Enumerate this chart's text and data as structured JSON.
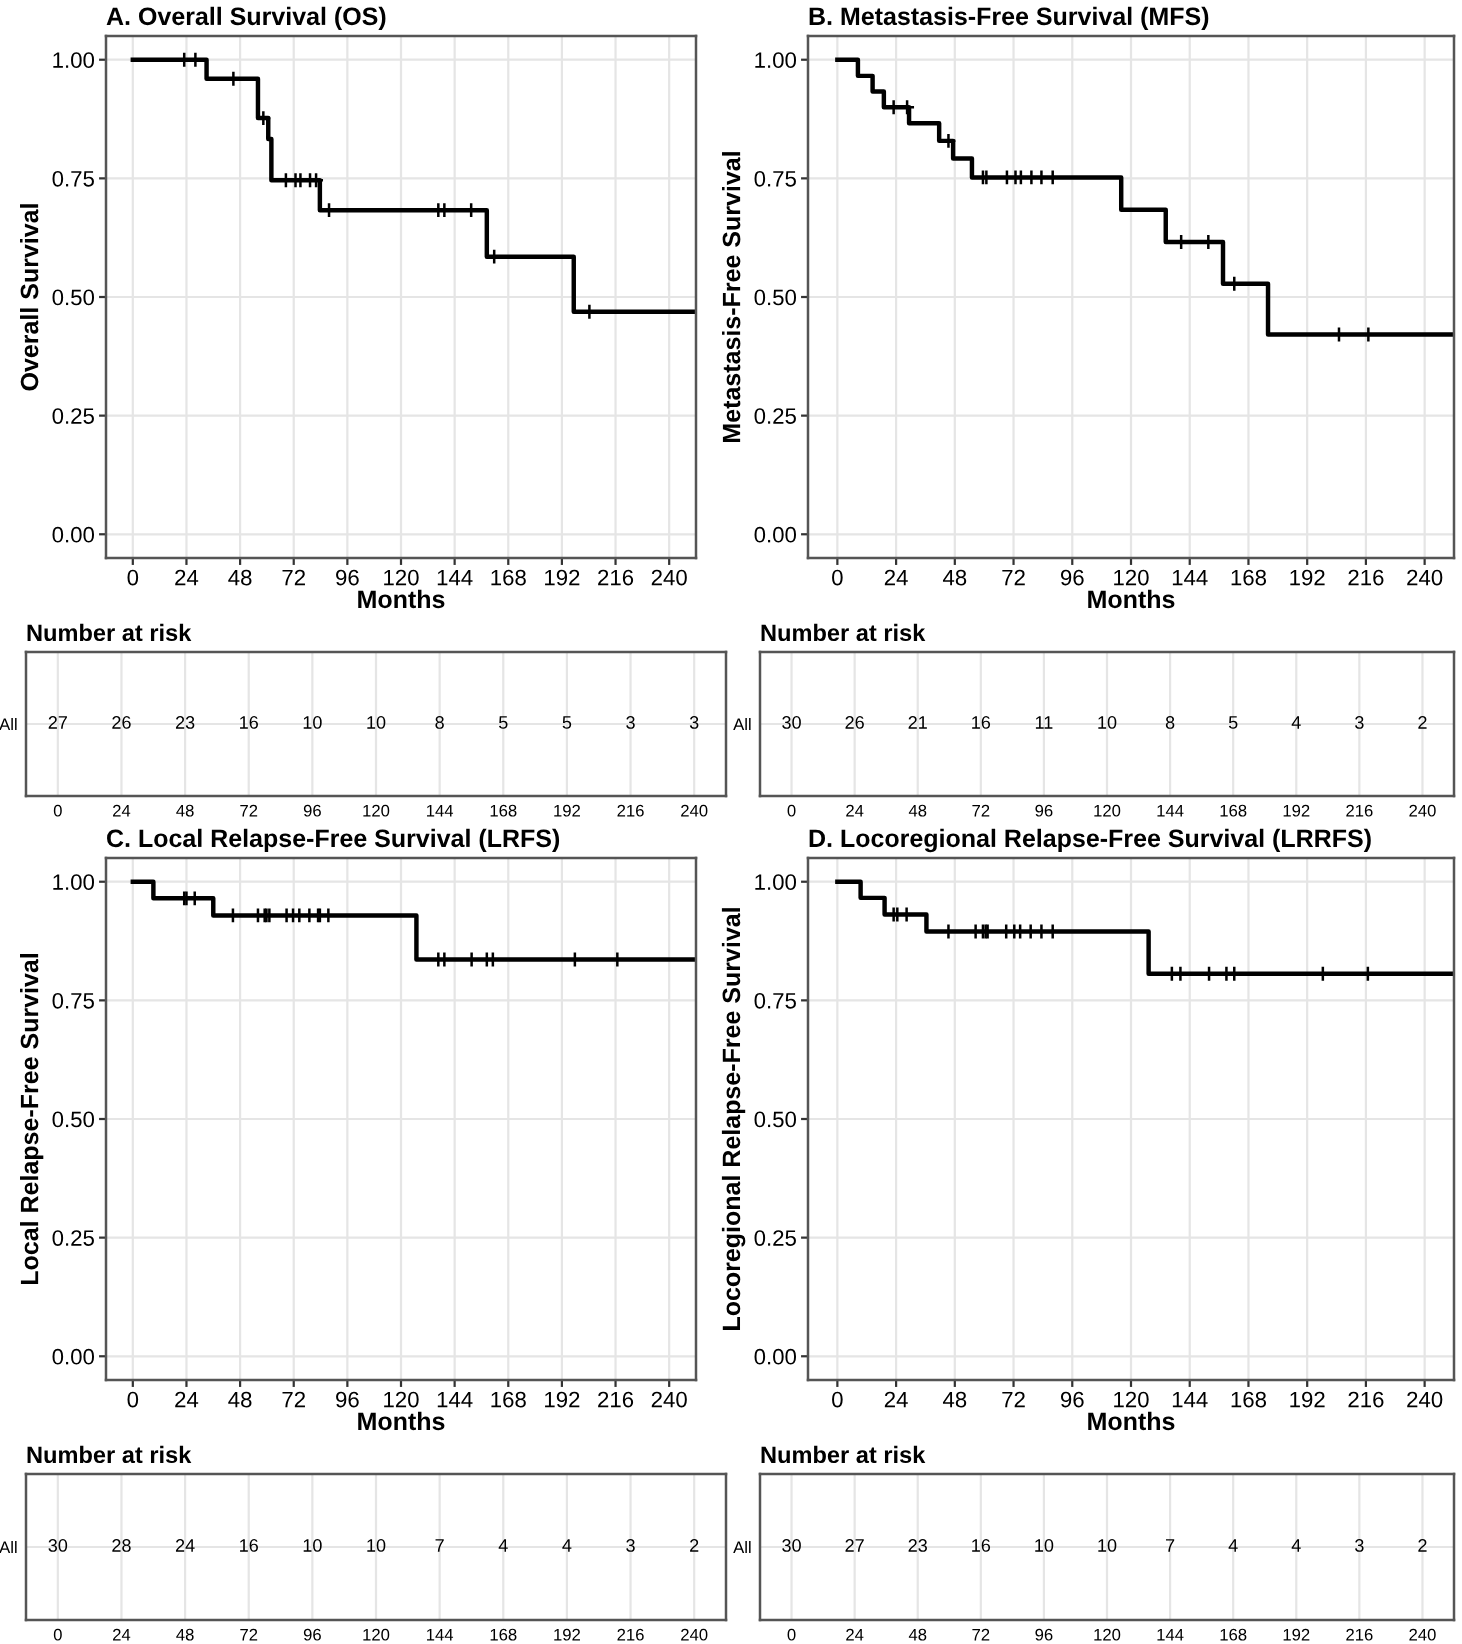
{
  "chart_data": [
    {
      "type": "step",
      "title": "A. Overall Survival (OS)",
      "xlabel": "Months",
      "ylabel": "Overall Survival",
      "xlim": [
        -12,
        252
      ],
      "ylim": [
        -0.05,
        1.05
      ],
      "xticks": [
        0,
        24,
        48,
        72,
        96,
        120,
        144,
        168,
        192,
        216,
        240
      ],
      "yticks": [
        {
          "value": 0,
          "label": "0.00"
        },
        {
          "value": 0.25,
          "label": "0.25"
        },
        {
          "value": 0.5,
          "label": "0.50"
        },
        {
          "value": 0.75,
          "label": "0.75"
        },
        {
          "value": 1,
          "label": "1.00"
        }
      ],
      "grid": true,
      "line_style": "solid",
      "series": [
        {
          "type": "step",
          "color": "#000000",
          "x": [
            0,
            33,
            56,
            60.6,
            62,
            83.7,
            158.4,
            197.3,
            252
          ],
          "values": [
            1,
            0.96,
            0.877,
            0.833,
            0.746,
            0.683,
            0.585,
            0.469,
            0.469
          ]
        },
        {
          "type": "scatter",
          "marker": "cross",
          "color": "#000000",
          "x": [
            23,
            28,
            45,
            58.4,
            68.5,
            72.8,
            75,
            79.3,
            82,
            87.8,
            136.7,
            139.4,
            151.4,
            161.7,
            204.3
          ],
          "values": [
            1,
            1,
            0.96,
            0.877,
            0.746,
            0.746,
            0.746,
            0.746,
            0.746,
            0.683,
            0.683,
            0.683,
            0.683,
            0.585,
            0.469
          ]
        }
      ]
    },
    {
      "type": "step",
      "title": "B. Metastasis-Free Survival (MFS)",
      "xlabel": "Months",
      "ylabel": "Metastasis-Free Survival",
      "xlim": [
        -12,
        252
      ],
      "ylim": [
        -0.05,
        1.05
      ],
      "xticks": [
        0,
        24,
        48,
        72,
        96,
        120,
        144,
        168,
        192,
        216,
        240
      ],
      "yticks": [
        {
          "value": 0,
          "label": "0.00"
        },
        {
          "value": 0.25,
          "label": "0.25"
        },
        {
          "value": 0.5,
          "label": "0.50"
        },
        {
          "value": 0.75,
          "label": "0.75"
        },
        {
          "value": 1,
          "label": "1.00"
        }
      ],
      "grid": true,
      "line_style": "solid",
      "series": [
        {
          "type": "step",
          "color": "#000000",
          "x": [
            0,
            8.4,
            14.4,
            19,
            29.3,
            41.6,
            47.3,
            55,
            116,
            134.2,
            157.6,
            176,
            252
          ],
          "values": [
            1,
            0.966,
            0.933,
            0.9,
            0.866,
            0.829,
            0.792,
            0.752,
            0.684,
            0.616,
            0.528,
            0.421,
            0.421
          ]
        },
        {
          "type": "scatter",
          "marker": "cross",
          "color": "#000000",
          "x": [
            23,
            28.5,
            45.4,
            59.5,
            60.9,
            69.3,
            72.8,
            75,
            79.3,
            83.4,
            88,
            140.5,
            151.6,
            162.2,
            205,
            217
          ],
          "values": [
            0.9,
            0.9,
            0.829,
            0.752,
            0.752,
            0.752,
            0.752,
            0.752,
            0.752,
            0.752,
            0.752,
            0.616,
            0.616,
            0.528,
            0.421,
            0.421
          ]
        }
      ]
    },
    {
      "type": "heatmap",
      "title": "Number at risk",
      "categories": [
        "0",
        "24",
        "48",
        "72",
        "96",
        "120",
        "144",
        "168",
        "192",
        "216",
        "240"
      ],
      "y_categories": [
        "All"
      ],
      "grid": "x",
      "data_labels": true,
      "cells": [
        [
          27,
          26,
          23,
          16,
          10,
          10,
          8,
          5,
          5,
          3,
          3
        ]
      ]
    },
    {
      "type": "heatmap",
      "title": "Number at risk",
      "categories": [
        "0",
        "24",
        "48",
        "72",
        "96",
        "120",
        "144",
        "168",
        "192",
        "216",
        "240"
      ],
      "y_categories": [
        "All"
      ],
      "grid": "x",
      "data_labels": true,
      "cells": [
        [
          30,
          26,
          21,
          16,
          11,
          10,
          8,
          5,
          4,
          3,
          2
        ]
      ]
    },
    {
      "type": "step",
      "title": "C. Local Relapse-Free Survival (LRFS)",
      "xlabel": "Months",
      "ylabel": "Local Relapse-Free Survival",
      "xlim": [
        -12,
        252
      ],
      "ylim": [
        -0.05,
        1.05
      ],
      "xticks": [
        0,
        24,
        48,
        72,
        96,
        120,
        144,
        168,
        192,
        216,
        240
      ],
      "yticks": [
        {
          "value": 0,
          "label": "0.00"
        },
        {
          "value": 0.25,
          "label": "0.25"
        },
        {
          "value": 0.5,
          "label": "0.50"
        },
        {
          "value": 0.75,
          "label": "0.75"
        },
        {
          "value": 1,
          "label": "1.00"
        }
      ],
      "grid": true,
      "line_style": "solid",
      "series": [
        {
          "type": "step",
          "color": "#000000",
          "x": [
            0,
            9.2,
            36,
            126.9,
            252
          ],
          "values": [
            1,
            0.965,
            0.929,
            0.836,
            0.836
          ]
        },
        {
          "type": "scatter",
          "marker": "cross",
          "color": "#000000",
          "x": [
            23,
            24,
            27.7,
            44.8,
            56,
            59,
            59.8,
            61.1,
            68.8,
            71.7,
            74.5,
            79,
            82.9,
            83.7,
            87.5,
            136.7,
            139.4,
            151.6,
            158.4,
            161.1,
            197.8,
            216.8
          ],
          "values": [
            0.965,
            0.965,
            0.965,
            0.929,
            0.929,
            0.929,
            0.929,
            0.929,
            0.929,
            0.929,
            0.929,
            0.929,
            0.929,
            0.929,
            0.929,
            0.836,
            0.836,
            0.836,
            0.836,
            0.836,
            0.836,
            0.836
          ]
        }
      ]
    },
    {
      "type": "step",
      "title": "D. Locoregional Relapse-Free Survival (LRRFS)",
      "xlabel": "Months",
      "ylabel": "Locoregional Relapse-Free Survival",
      "xlim": [
        -12,
        252
      ],
      "ylim": [
        -0.05,
        1.05
      ],
      "xticks": [
        0,
        24,
        48,
        72,
        96,
        120,
        144,
        168,
        192,
        216,
        240
      ],
      "yticks": [
        {
          "value": 0,
          "label": "0.00"
        },
        {
          "value": 0.25,
          "label": "0.25"
        },
        {
          "value": 0.5,
          "label": "0.50"
        },
        {
          "value": 0.75,
          "label": "0.75"
        },
        {
          "value": 1,
          "label": "1.00"
        }
      ],
      "grid": true,
      "line_style": "solid",
      "series": [
        {
          "type": "step",
          "color": "#000000",
          "x": [
            0,
            9.5,
            19.3,
            36.4,
            127.2,
            252
          ],
          "values": [
            1,
            0.966,
            0.931,
            0.895,
            0.806,
            0.806
          ]
        },
        {
          "type": "scatter",
          "marker": "cross",
          "color": "#000000",
          "x": [
            23,
            24.5,
            28.3,
            45.4,
            56.5,
            59.5,
            60.6,
            61.4,
            69,
            72.3,
            74.7,
            79,
            83.4,
            88,
            136.7,
            140.2,
            151.9,
            159,
            162.2,
            198.4,
            216.8
          ],
          "values": [
            0.931,
            0.931,
            0.931,
            0.895,
            0.895,
            0.895,
            0.895,
            0.895,
            0.895,
            0.895,
            0.895,
            0.895,
            0.895,
            0.895,
            0.806,
            0.806,
            0.806,
            0.806,
            0.806,
            0.806,
            0.806
          ]
        }
      ]
    },
    {
      "type": "heatmap",
      "title": "Number at risk",
      "categories": [
        "0",
        "24",
        "48",
        "72",
        "96",
        "120",
        "144",
        "168",
        "192",
        "216",
        "240"
      ],
      "y_categories": [
        "All"
      ],
      "grid": "x",
      "data_labels": true,
      "cells": [
        [
          30,
          28,
          24,
          16,
          10,
          10,
          7,
          4,
          4,
          3,
          2
        ]
      ]
    },
    {
      "type": "heatmap",
      "title": "Number at risk",
      "categories": [
        "0",
        "24",
        "48",
        "72",
        "96",
        "120",
        "144",
        "168",
        "192",
        "216",
        "240"
      ],
      "y_categories": [
        "All"
      ],
      "grid": "x",
      "data_labels": true,
      "cells": [
        [
          30,
          27,
          23,
          16,
          10,
          10,
          7,
          4,
          4,
          3,
          2
        ]
      ]
    }
  ]
}
